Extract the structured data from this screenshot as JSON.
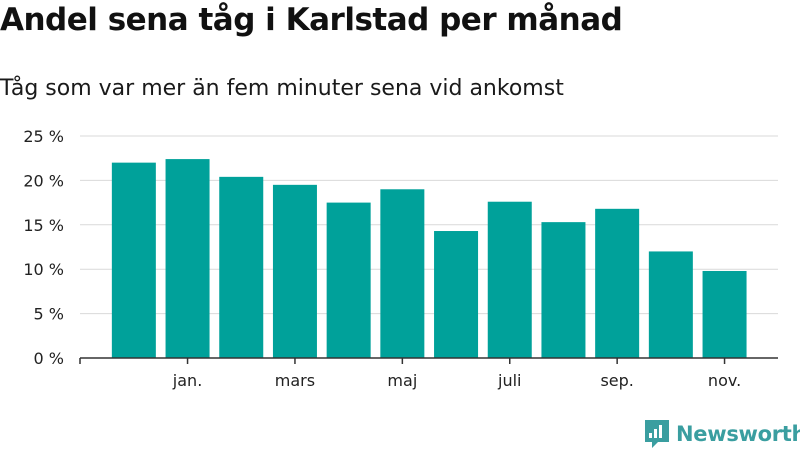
{
  "header": {
    "title": "Andel sena tåg i Karlstad per månad",
    "subtitle": "Tåg som var mer än fem minuter sena vid ankomst"
  },
  "brand": {
    "name": "Newsworthy",
    "color": "#3a9ea0"
  },
  "colors": {
    "bar": "#00a19a",
    "grid": "#d9d9d9",
    "axis": "#333333"
  },
  "chart_data": {
    "type": "bar",
    "title": "Andel sena tåg i Karlstad per månad",
    "subtitle": "Tåg som var mer än fem minuter sena vid ankomst",
    "xlabel": "",
    "ylabel": "",
    "ylim": [
      0,
      25
    ],
    "yticks": [
      0,
      5,
      10,
      15,
      20,
      25
    ],
    "ytick_labels": [
      "0 %",
      "5 %",
      "10 %",
      "15 %",
      "20 %",
      "25 %"
    ],
    "xtick_labels": [
      {
        "index": 1,
        "label": "jan."
      },
      {
        "index": 3,
        "label": "mars"
      },
      {
        "index": 5,
        "label": "maj"
      },
      {
        "index": 7,
        "label": "juli"
      },
      {
        "index": 9,
        "label": "sep."
      },
      {
        "index": 11,
        "label": "nov."
      }
    ],
    "values": [
      22.0,
      22.4,
      20.4,
      19.5,
      17.5,
      19.0,
      14.3,
      17.6,
      15.3,
      16.8,
      12.0,
      9.8
    ],
    "grid": true
  }
}
